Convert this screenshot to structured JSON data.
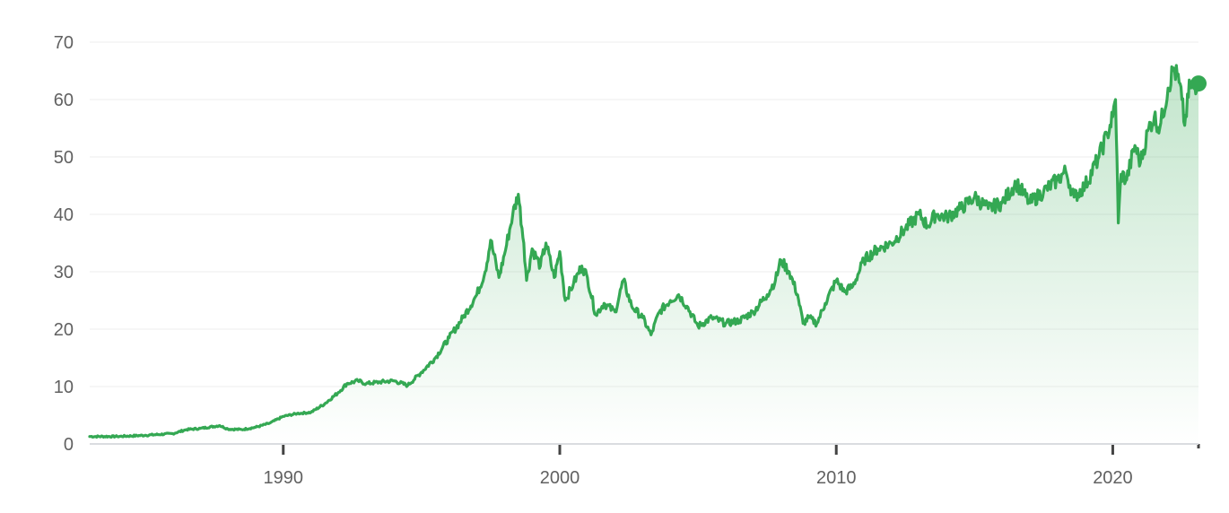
{
  "theme": {
    "line_color": "#34a853",
    "fill_color": "#34a853"
  },
  "chart_data": {
    "type": "line",
    "title": "",
    "xlabel": "",
    "ylabel": "",
    "xlim": [
      1983.0,
      2023.1
    ],
    "ylim": [
      0,
      70
    ],
    "grid": true,
    "legend": "none",
    "y_ticks": [
      "0",
      "10",
      "20",
      "30",
      "40",
      "50",
      "60",
      "70"
    ],
    "x_ticks": [
      "1990",
      "2000",
      "2010",
      "2020"
    ],
    "series": [
      {
        "name": "",
        "points": [
          [
            1983.0,
            1.3
          ],
          [
            1984.0,
            1.3
          ],
          [
            1985.0,
            1.5
          ],
          [
            1986.0,
            1.8
          ],
          [
            1986.5,
            2.5
          ],
          [
            1987.0,
            2.7
          ],
          [
            1987.7,
            3.2
          ],
          [
            1988.0,
            2.6
          ],
          [
            1988.5,
            2.5
          ],
          [
            1989.0,
            2.9
          ],
          [
            1989.5,
            3.6
          ],
          [
            1990.0,
            4.8
          ],
          [
            1990.5,
            5.3
          ],
          [
            1991.0,
            5.5
          ],
          [
            1991.5,
            7.0
          ],
          [
            1992.0,
            9.0
          ],
          [
            1992.3,
            10.5
          ],
          [
            1992.7,
            11.0
          ],
          [
            1993.0,
            10.5
          ],
          [
            1993.5,
            10.8
          ],
          [
            1994.0,
            11.0
          ],
          [
            1994.5,
            10.2
          ],
          [
            1995.0,
            12.5
          ],
          [
            1995.5,
            15.0
          ],
          [
            1996.0,
            18.5
          ],
          [
            1996.5,
            22.0
          ],
          [
            1997.0,
            26.0
          ],
          [
            1997.3,
            30.0
          ],
          [
            1997.5,
            35.5
          ],
          [
            1997.8,
            29.0
          ],
          [
            1998.0,
            33.0
          ],
          [
            1998.3,
            40.0
          ],
          [
            1998.5,
            43.5
          ],
          [
            1998.7,
            35.0
          ],
          [
            1998.8,
            28.5
          ],
          [
            1999.0,
            34.0
          ],
          [
            1999.3,
            31.0
          ],
          [
            1999.5,
            35.0
          ],
          [
            1999.8,
            29.0
          ],
          [
            2000.0,
            33.5
          ],
          [
            2000.2,
            25.0
          ],
          [
            2000.5,
            28.0
          ],
          [
            2000.8,
            31.0
          ],
          [
            2001.0,
            29.0
          ],
          [
            2001.3,
            22.5
          ],
          [
            2001.6,
            24.5
          ],
          [
            2002.0,
            23.0
          ],
          [
            2002.3,
            28.5
          ],
          [
            2002.6,
            24.0
          ],
          [
            2003.0,
            22.0
          ],
          [
            2003.3,
            19.0
          ],
          [
            2003.6,
            23.0
          ],
          [
            2004.0,
            25.0
          ],
          [
            2004.3,
            26.0
          ],
          [
            2004.6,
            24.0
          ],
          [
            2005.0,
            20.5
          ],
          [
            2005.5,
            22.0
          ],
          [
            2006.0,
            21.0
          ],
          [
            2006.5,
            21.5
          ],
          [
            2007.0,
            23.0
          ],
          [
            2007.5,
            26.0
          ],
          [
            2007.8,
            28.5
          ],
          [
            2008.0,
            32.0
          ],
          [
            2008.3,
            30.0
          ],
          [
            2008.6,
            26.0
          ],
          [
            2008.8,
            21.0
          ],
          [
            2009.0,
            22.0
          ],
          [
            2009.3,
            21.0
          ],
          [
            2009.6,
            24.5
          ],
          [
            2010.0,
            28.5
          ],
          [
            2010.3,
            26.5
          ],
          [
            2010.6,
            27.5
          ],
          [
            2011.0,
            32.0
          ],
          [
            2011.5,
            34.0
          ],
          [
            2012.0,
            35.0
          ],
          [
            2012.5,
            37.5
          ],
          [
            2013.0,
            40.0
          ],
          [
            2013.3,
            38.0
          ],
          [
            2013.6,
            40.0
          ],
          [
            2014.0,
            39.5
          ],
          [
            2014.5,
            41.0
          ],
          [
            2015.0,
            43.0
          ],
          [
            2015.5,
            41.0
          ],
          [
            2016.0,
            42.0
          ],
          [
            2016.5,
            45.5
          ],
          [
            2017.0,
            42.0
          ],
          [
            2017.5,
            44.0
          ],
          [
            2018.0,
            46.0
          ],
          [
            2018.3,
            47.5
          ],
          [
            2018.6,
            43.0
          ],
          [
            2019.0,
            45.0
          ],
          [
            2019.5,
            50.0
          ],
          [
            2019.8,
            54.0
          ],
          [
            2020.0,
            57.0
          ],
          [
            2020.1,
            60.0
          ],
          [
            2020.15,
            50.0
          ],
          [
            2020.2,
            38.5
          ],
          [
            2020.3,
            47.0
          ],
          [
            2020.5,
            46.0
          ],
          [
            2020.8,
            52.0
          ],
          [
            2021.0,
            49.0
          ],
          [
            2021.3,
            55.0
          ],
          [
            2021.5,
            57.0
          ],
          [
            2021.7,
            55.0
          ],
          [
            2022.0,
            62.0
          ],
          [
            2022.2,
            65.5
          ],
          [
            2022.4,
            63.0
          ],
          [
            2022.5,
            60.0
          ],
          [
            2022.6,
            55.5
          ],
          [
            2022.8,
            63.0
          ],
          [
            2023.0,
            61.0
          ],
          [
            2023.1,
            62.8
          ]
        ]
      }
    ]
  }
}
